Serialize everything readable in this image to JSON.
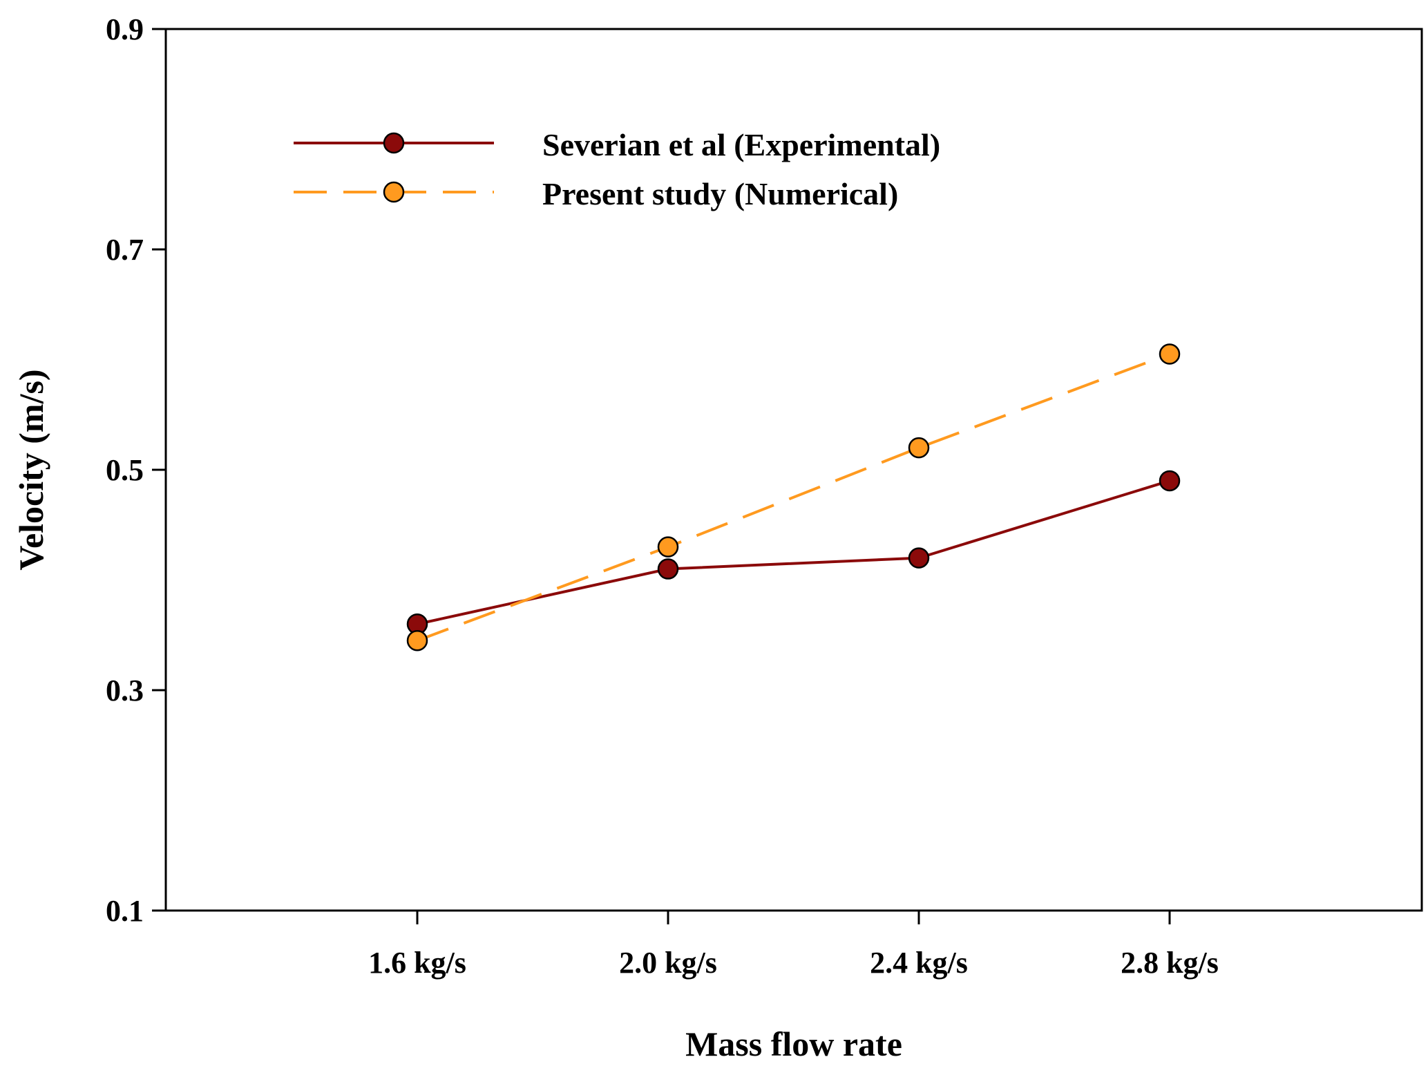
{
  "chart_data": {
    "type": "line",
    "title": "",
    "xlabel": "Mass flow rate",
    "ylabel": "Velocity (m/s)",
    "categories": [
      "1.6 kg/s",
      "2.0 kg/s",
      "2.4 kg/s",
      "2.8 kg/s"
    ],
    "ylim": [
      0.1,
      0.9
    ],
    "yticks": [
      "0.1",
      "0.3",
      "0.5",
      "0.7",
      "0.9"
    ],
    "grid": false,
    "legend_position": "top-left",
    "series": [
      {
        "name": "Severian et al (Experimental)",
        "values": [
          0.36,
          0.41,
          0.42,
          0.49
        ],
        "color": "#8B0A0A",
        "marker_color": "#8B0A0A",
        "style": "solid"
      },
      {
        "name": "Present study (Numerical)",
        "values": [
          0.345,
          0.43,
          0.52,
          0.605
        ],
        "color": "#FF9A1F",
        "marker_color": "#FF9A1F",
        "style": "dashed"
      }
    ]
  }
}
